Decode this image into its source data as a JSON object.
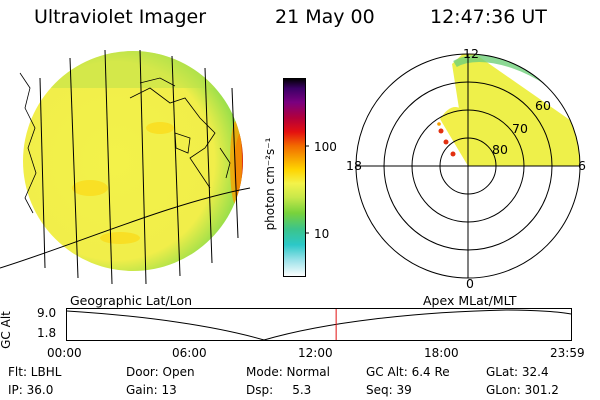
{
  "header": {
    "instrument": "Ultraviolet Imager",
    "date": "21 May 00",
    "time": "12:47:36 UT"
  },
  "colorbar": {
    "unit_label": "photon cm⁻²s⁻¹",
    "ticks": [
      "100",
      "10"
    ],
    "colors": [
      "#000000",
      "#3b0066",
      "#7a0080",
      "#b3003a",
      "#e41010",
      "#f26a00",
      "#f7a000",
      "#ffd400",
      "#f3f34a",
      "#c8e84a",
      "#78d23c",
      "#3cc48a",
      "#2cc8c8",
      "#9fe3ea",
      "#ffffff"
    ]
  },
  "polar_plot": {
    "mlt_labels": [
      "12",
      "18",
      "6",
      "0"
    ],
    "mlat_labels": [
      "60",
      "70",
      "80"
    ]
  },
  "map_labels": {
    "left": "Geographic Lat/Lon",
    "right": "Apex MLat/MLT"
  },
  "altitude_plot": {
    "ylabel": "GC Alt",
    "yticks": [
      "9.0",
      "1.8"
    ],
    "xticks": [
      "00:00",
      "06:00",
      "12:00",
      "18:00",
      "23:59"
    ],
    "current_time_fraction": 0.534
  },
  "info": {
    "row1": [
      "Flt: LBHL",
      "Door: Open",
      "Mode: Normal",
      "GC Alt: 6.4 Re",
      "GLat: 32.4"
    ],
    "row2": [
      "IP: 36.0",
      "Gain: 13",
      "Dsp:     5.3",
      "Seq: 39",
      "GLon: 301.2"
    ]
  }
}
